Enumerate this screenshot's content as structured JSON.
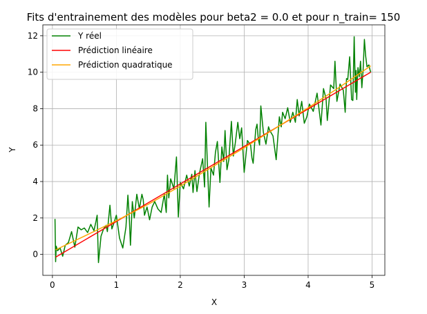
{
  "chart_data": {
    "type": "line",
    "title": "Fits d'entrainement des modèles pour beta2 = 0.0 et pour n_train= 150",
    "xlabel": "X",
    "ylabel": "Y",
    "xlim": [
      -0.15,
      5.2
    ],
    "ylim": [
      -1.15,
      12.6
    ],
    "xticks": [
      0,
      1,
      2,
      3,
      4,
      5
    ],
    "yticks": [
      0,
      2,
      4,
      6,
      8,
      10,
      12
    ],
    "grid": true,
    "legend_position": "top-left",
    "series": [
      {
        "name": "Y réel",
        "color": "#008000",
        "x": [
          0.04,
          0.05,
          0.06,
          0.08,
          0.12,
          0.16,
          0.2,
          0.25,
          0.3,
          0.35,
          0.4,
          0.45,
          0.5,
          0.55,
          0.6,
          0.65,
          0.68,
          0.7,
          0.72,
          0.76,
          0.8,
          0.84,
          0.86,
          0.9,
          0.93,
          0.96,
          1.0,
          1.05,
          1.1,
          1.15,
          1.18,
          1.2,
          1.22,
          1.25,
          1.28,
          1.32,
          1.36,
          1.4,
          1.42,
          1.44,
          1.48,
          1.52,
          1.56,
          1.6,
          1.65,
          1.7,
          1.75,
          1.78,
          1.8,
          1.82,
          1.85,
          1.9,
          1.94,
          1.97,
          2.0,
          2.05,
          2.1,
          2.14,
          2.18,
          2.2,
          2.23,
          2.26,
          2.3,
          2.35,
          2.38,
          2.4,
          2.42,
          2.45,
          2.48,
          2.52,
          2.55,
          2.58,
          2.62,
          2.65,
          2.68,
          2.7,
          2.73,
          2.76,
          2.8,
          2.83,
          2.86,
          2.9,
          2.93,
          2.96,
          3.0,
          3.05,
          3.1,
          3.12,
          3.14,
          3.18,
          3.2,
          3.22,
          3.24,
          3.26,
          3.3,
          3.34,
          3.38,
          3.4,
          3.45,
          3.5,
          3.55,
          3.58,
          3.6,
          3.64,
          3.68,
          3.72,
          3.76,
          3.8,
          3.83,
          3.86,
          3.9,
          3.94,
          3.98,
          4.02,
          4.08,
          4.14,
          4.2,
          4.24,
          4.28,
          4.3,
          4.35,
          4.4,
          4.42,
          4.45,
          4.5,
          4.55,
          4.58,
          4.6,
          4.62,
          4.65,
          4.68,
          4.7,
          4.72,
          4.74,
          4.75,
          4.76,
          4.77,
          4.78,
          4.8,
          4.82,
          4.84,
          4.86,
          4.88,
          4.9,
          4.92,
          4.95,
          4.97,
          4.98
        ],
        "y": [
          1.95,
          -0.4,
          0.45,
          0.2,
          0.35,
          -0.1,
          0.5,
          0.65,
          1.25,
          0.4,
          1.5,
          1.35,
          1.45,
          1.2,
          1.65,
          1.3,
          1.8,
          2.15,
          -0.45,
          1.0,
          1.4,
          1.6,
          1.25,
          2.7,
          1.4,
          1.7,
          2.15,
          0.9,
          0.35,
          1.5,
          3.25,
          2.2,
          0.5,
          2.9,
          2.0,
          3.3,
          2.5,
          3.3,
          3.0,
          2.15,
          2.6,
          1.9,
          2.6,
          2.9,
          2.5,
          2.3,
          3.3,
          2.3,
          4.35,
          3.1,
          4.15,
          3.6,
          5.35,
          2.05,
          3.95,
          3.6,
          4.35,
          3.75,
          4.4,
          3.4,
          4.6,
          3.45,
          4.45,
          5.25,
          3.7,
          7.25,
          5.35,
          2.6,
          4.75,
          4.35,
          5.6,
          6.2,
          3.95,
          5.9,
          5.1,
          6.8,
          4.65,
          5.2,
          7.3,
          5.4,
          6.1,
          7.25,
          6.35,
          6.95,
          4.5,
          6.25,
          6.0,
          5.3,
          5.0,
          6.85,
          7.15,
          6.35,
          6.0,
          8.15,
          6.7,
          6.05,
          7.0,
          6.8,
          6.5,
          5.2,
          7.55,
          7.0,
          7.8,
          7.45,
          8.05,
          7.25,
          7.8,
          7.25,
          8.5,
          7.6,
          8.4,
          7.2,
          7.55,
          8.25,
          7.85,
          8.85,
          7.1,
          9.1,
          8.55,
          7.35,
          9.3,
          9.1,
          10.6,
          8.4,
          9.35,
          9.0,
          7.8,
          9.65,
          9.6,
          10.85,
          8.5,
          8.45,
          11.95,
          8.9,
          10.1,
          8.5,
          9.6,
          10.25,
          9.75,
          10.6,
          9.15,
          10.1,
          11.8,
          10.9,
          10.3,
          10.4,
          10.1,
          10.0
        ]
      },
      {
        "name": "Prédiction linéaire",
        "color": "#ff0000",
        "x": [
          0.05,
          4.98
        ],
        "y": [
          -0.15,
          10.0
        ]
      },
      {
        "name": "Prédiction quadratique",
        "color": "#ffa500",
        "x": [
          0.05,
          0.5,
          1.0,
          1.5,
          2.0,
          2.5,
          3.0,
          3.5,
          4.0,
          4.5,
          4.98
        ],
        "y": [
          0.25,
          1.0,
          1.85,
          2.75,
          3.75,
          4.8,
          5.85,
          6.95,
          8.05,
          9.2,
          10.35
        ]
      }
    ]
  }
}
